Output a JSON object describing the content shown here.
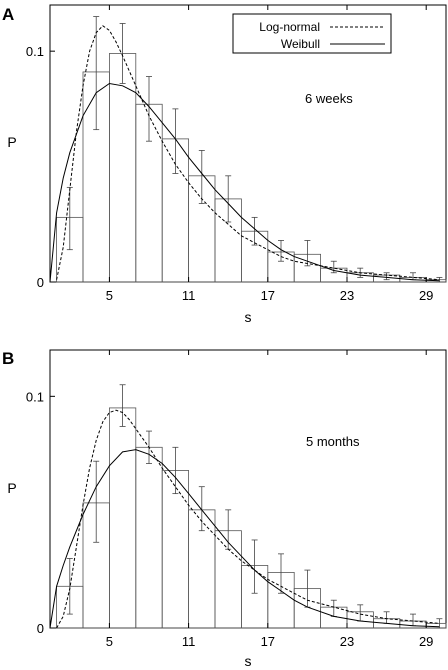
{
  "chart_data": [
    {
      "type": "bar",
      "panel_label": "A",
      "annotation": "6 weeks",
      "xlabel": "s",
      "ylabel": "P",
      "xticks": [
        5,
        11,
        17,
        23,
        29
      ],
      "yticks": [
        0,
        0.1
      ],
      "xlim": [
        0.5,
        30.5
      ],
      "ylim": [
        0,
        0.12
      ],
      "legend": {
        "position": "top-right",
        "entries": [
          {
            "label": "Log-normal",
            "style": "dashed"
          },
          {
            "label": "Weibull",
            "style": "solid"
          }
        ]
      },
      "histogram": {
        "bin_width": 2,
        "bin_centers": [
          2,
          4,
          6,
          8,
          10,
          12,
          14,
          16,
          18,
          20,
          22,
          24,
          26,
          28,
          30
        ],
        "values": [
          0.028,
          0.091,
          0.099,
          0.077,
          0.062,
          0.046,
          0.036,
          0.022,
          0.013,
          0.012,
          0.006,
          0.004,
          0.003,
          0.002,
          0.001
        ],
        "error_low": [
          0.014,
          0.066,
          0.086,
          0.061,
          0.047,
          0.034,
          0.026,
          0.016,
          0.009,
          0.007,
          0.004,
          0.002,
          0.001,
          0.001,
          0.0
        ],
        "error_high": [
          0.041,
          0.115,
          0.112,
          0.089,
          0.075,
          0.057,
          0.046,
          0.028,
          0.018,
          0.018,
          0.009,
          0.006,
          0.004,
          0.004,
          0.002
        ]
      },
      "series": [
        {
          "name": "Log-normal",
          "style": "dashed",
          "x": [
            1,
            1.5,
            2,
            2.5,
            3,
            3.5,
            4,
            4.5,
            5,
            5.5,
            6,
            7,
            8,
            9,
            10,
            11,
            12,
            13,
            14,
            15,
            16,
            17,
            18,
            19,
            20,
            22,
            24,
            26,
            28,
            30
          ],
          "y": [
            0.001,
            0.015,
            0.04,
            0.065,
            0.085,
            0.1,
            0.108,
            0.111,
            0.109,
            0.104,
            0.098,
            0.085,
            0.072,
            0.061,
            0.051,
            0.043,
            0.036,
            0.03,
            0.025,
            0.02,
            0.017,
            0.014,
            0.011,
            0.009,
            0.008,
            0.006,
            0.004,
            0.003,
            0.002,
            0.001
          ]
        },
        {
          "name": "Weibull",
          "style": "solid",
          "x": [
            0.5,
            1,
            1.5,
            2,
            3,
            4,
            5,
            6,
            7,
            8,
            9,
            10,
            11,
            12,
            13,
            14,
            15,
            16,
            17,
            18,
            19,
            20,
            22,
            24,
            26,
            28,
            30
          ],
          "y": [
            0.0,
            0.03,
            0.045,
            0.056,
            0.072,
            0.082,
            0.086,
            0.085,
            0.082,
            0.076,
            0.069,
            0.062,
            0.054,
            0.047,
            0.04,
            0.034,
            0.028,
            0.023,
            0.018,
            0.014,
            0.011,
            0.009,
            0.005,
            0.003,
            0.002,
            0.001,
            0.0005
          ]
        }
      ]
    },
    {
      "type": "bar",
      "panel_label": "B",
      "annotation": "5 months",
      "xlabel": "s",
      "ylabel": "P",
      "xticks": [
        5,
        11,
        17,
        23,
        29
      ],
      "yticks": [
        0,
        0.1
      ],
      "xlim": [
        0.5,
        30.5
      ],
      "ylim": [
        0,
        0.12
      ],
      "histogram": {
        "bin_width": 2,
        "bin_centers": [
          2,
          4,
          6,
          8,
          10,
          12,
          14,
          16,
          18,
          20,
          22,
          24,
          26,
          28,
          30
        ],
        "values": [
          0.018,
          0.054,
          0.095,
          0.078,
          0.068,
          0.051,
          0.042,
          0.027,
          0.024,
          0.017,
          0.009,
          0.007,
          0.004,
          0.003,
          0.002
        ],
        "error_low": [
          0.006,
          0.037,
          0.087,
          0.071,
          0.058,
          0.042,
          0.034,
          0.015,
          0.015,
          0.009,
          0.005,
          0.003,
          0.002,
          0.001,
          0.0
        ],
        "error_high": [
          0.03,
          0.072,
          0.105,
          0.085,
          0.078,
          0.061,
          0.051,
          0.038,
          0.032,
          0.025,
          0.012,
          0.01,
          0.007,
          0.006,
          0.004
        ]
      },
      "series": [
        {
          "name": "Log-normal",
          "style": "dashed",
          "x": [
            1,
            1.5,
            2,
            2.5,
            3,
            3.5,
            4,
            4.5,
            5,
            5.5,
            6,
            6.5,
            7,
            8,
            9,
            10,
            11,
            12,
            13,
            14,
            15,
            16,
            17,
            18,
            19,
            20,
            22,
            24,
            26,
            28,
            30
          ],
          "y": [
            0.0,
            0.005,
            0.017,
            0.035,
            0.053,
            0.069,
            0.081,
            0.089,
            0.093,
            0.094,
            0.093,
            0.09,
            0.086,
            0.078,
            0.069,
            0.061,
            0.053,
            0.046,
            0.04,
            0.034,
            0.029,
            0.025,
            0.021,
            0.018,
            0.015,
            0.012,
            0.009,
            0.006,
            0.004,
            0.003,
            0.002
          ]
        },
        {
          "name": "Weibull",
          "style": "solid",
          "x": [
            0.5,
            1,
            1.5,
            2,
            3,
            4,
            5,
            6,
            7,
            8,
            9,
            10,
            11,
            12,
            13,
            14,
            15,
            16,
            17,
            18,
            19,
            20,
            22,
            24,
            26,
            28,
            30
          ],
          "y": [
            0.0,
            0.018,
            0.027,
            0.035,
            0.049,
            0.061,
            0.07,
            0.076,
            0.077,
            0.075,
            0.071,
            0.065,
            0.058,
            0.051,
            0.044,
            0.037,
            0.031,
            0.025,
            0.02,
            0.016,
            0.012,
            0.009,
            0.005,
            0.003,
            0.002,
            0.001,
            0.0005
          ]
        }
      ]
    }
  ]
}
